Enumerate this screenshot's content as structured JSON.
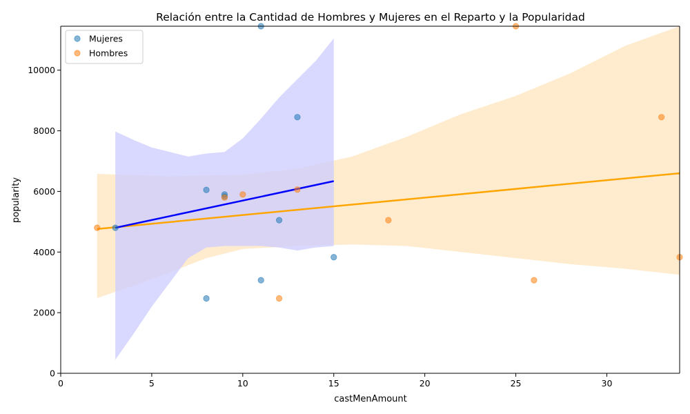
{
  "chart_data": {
    "type": "scatter",
    "title": "Relación entre la Cantidad de Hombres y Mujeres en el Reparto y la Popularidad",
    "xlabel": "castMenAmount",
    "ylabel": "popularity",
    "xlim": [
      0,
      34
    ],
    "ylim": [
      0,
      11450
    ],
    "x_ticks": [
      0,
      5,
      10,
      15,
      20,
      25,
      30
    ],
    "y_ticks": [
      0,
      2000,
      4000,
      6000,
      8000,
      10000
    ],
    "grid": false,
    "legend_position": "top-left",
    "series": [
      {
        "name": "Mujeres",
        "color": "#1f77b4",
        "line_color": "#0000ff",
        "band_color": "#ccccff",
        "points": [
          {
            "x": 3,
            "y": 4800
          },
          {
            "x": 8,
            "y": 6050
          },
          {
            "x": 8,
            "y": 2470
          },
          {
            "x": 9,
            "y": 5900
          },
          {
            "x": 9,
            "y": 5830
          },
          {
            "x": 11,
            "y": 11450
          },
          {
            "x": 11,
            "y": 3070
          },
          {
            "x": 12,
            "y": 5050
          },
          {
            "x": 13,
            "y": 8450
          },
          {
            "x": 15,
            "y": 3830
          }
        ],
        "fit": {
          "x": [
            3,
            15
          ],
          "y": [
            4800,
            6340
          ]
        },
        "band_upper": [
          [
            3,
            7980
          ],
          [
            4,
            7700
          ],
          [
            5,
            7450
          ],
          [
            6,
            7300
          ],
          [
            7,
            7150
          ],
          [
            8,
            7250
          ],
          [
            9,
            7300
          ],
          [
            10,
            7750
          ],
          [
            11,
            8400
          ],
          [
            12,
            9100
          ],
          [
            13,
            9700
          ],
          [
            14,
            10300
          ],
          [
            15,
            11050
          ]
        ],
        "band_lower": [
          [
            3,
            450
          ],
          [
            4,
            1300
          ],
          [
            5,
            2200
          ],
          [
            6,
            3000
          ],
          [
            7,
            3800
          ],
          [
            8,
            4150
          ],
          [
            9,
            4200
          ],
          [
            10,
            4200
          ],
          [
            11,
            4200
          ],
          [
            12,
            4150
          ],
          [
            13,
            4050
          ],
          [
            14,
            4150
          ],
          [
            15,
            4200
          ]
        ]
      },
      {
        "name": "Hombres",
        "color": "#ff7f0e",
        "line_color": "#ffa500",
        "band_color": "#ffe9c9",
        "points": [
          {
            "x": 2,
            "y": 4800
          },
          {
            "x": 9,
            "y": 5800
          },
          {
            "x": 10,
            "y": 5900
          },
          {
            "x": 12,
            "y": 2470
          },
          {
            "x": 13,
            "y": 6060
          },
          {
            "x": 18,
            "y": 5050
          },
          {
            "x": 25,
            "y": 11450
          },
          {
            "x": 26,
            "y": 3070
          },
          {
            "x": 33,
            "y": 8450
          },
          {
            "x": 34,
            "y": 3830
          }
        ],
        "fit": {
          "x": [
            2,
            34
          ],
          "y": [
            4760,
            6600
          ]
        },
        "band_upper": [
          [
            2,
            6580
          ],
          [
            6,
            6500
          ],
          [
            10,
            6550
          ],
          [
            13,
            6750
          ],
          [
            16,
            7150
          ],
          [
            19,
            7800
          ],
          [
            22,
            8550
          ],
          [
            25,
            9150
          ],
          [
            28,
            9900
          ],
          [
            31,
            10800
          ],
          [
            34,
            11450
          ]
        ],
        "band_lower": [
          [
            2,
            2480
          ],
          [
            5,
            3100
          ],
          [
            8,
            3800
          ],
          [
            10,
            4100
          ],
          [
            13,
            4200
          ],
          [
            16,
            4250
          ],
          [
            19,
            4200
          ],
          [
            22,
            4000
          ],
          [
            25,
            3800
          ],
          [
            28,
            3600
          ],
          [
            31,
            3450
          ],
          [
            34,
            3250
          ]
        ]
      }
    ]
  }
}
